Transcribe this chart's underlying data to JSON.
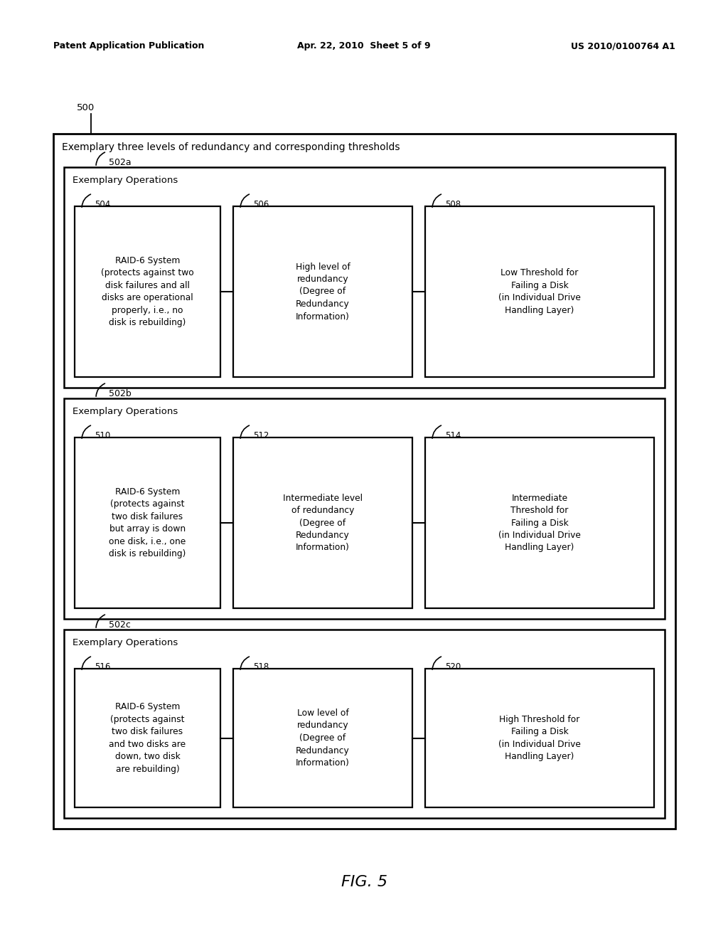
{
  "header_left": "Patent Application Publication",
  "header_mid": "Apr. 22, 2010  Sheet 5 of 9",
  "header_right": "US 2010/0100764 A1",
  "fig_label": "FIG. 5",
  "outer_label": "500",
  "outer_title": "Exemplary three levels of redundancy and corresponding thresholds",
  "sections": [
    {
      "label": "502a",
      "section_title": "Exemplary Operations",
      "boxes": [
        {
          "num": "504",
          "text": "RAID-6 System\n(protects against two\ndisk failures and all\ndisks are operational\nproperly, i.e., no\ndisk is rebuilding)"
        },
        {
          "num": "506",
          "text": "High level of\nredundancy\n(Degree of\nRedundancy\nInformation)"
        },
        {
          "num": "508",
          "text": "Low Threshold for\nFailing a Disk\n(in Individual Drive\nHandling Layer)"
        }
      ]
    },
    {
      "label": "502b",
      "section_title": "Exemplary Operations",
      "boxes": [
        {
          "num": "510",
          "text": "RAID-6 System\n(protects against\ntwo disk failures\nbut array is down\none disk, i.e., one\ndisk is rebuilding)"
        },
        {
          "num": "512",
          "text": "Intermediate level\nof redundancy\n(Degree of\nRedundancy\nInformation)"
        },
        {
          "num": "514",
          "text": "Intermediate\nThreshold for\nFailing a Disk\n(in Individual Drive\nHandling Layer)"
        }
      ]
    },
    {
      "label": "502c",
      "section_title": "Exemplary Operations",
      "boxes": [
        {
          "num": "516",
          "text": "RAID-6 System\n(protects against\ntwo disk failures\nand two disks are\ndown, two disk\nare rebuilding)"
        },
        {
          "num": "518",
          "text": "Low level of\nredundancy\n(Degree of\nRedundancy\nInformation)"
        },
        {
          "num": "520",
          "text": "High Threshold for\nFailing a Disk\n(in Individual Drive\nHandling Layer)"
        }
      ]
    }
  ],
  "bg_color": "#ffffff"
}
